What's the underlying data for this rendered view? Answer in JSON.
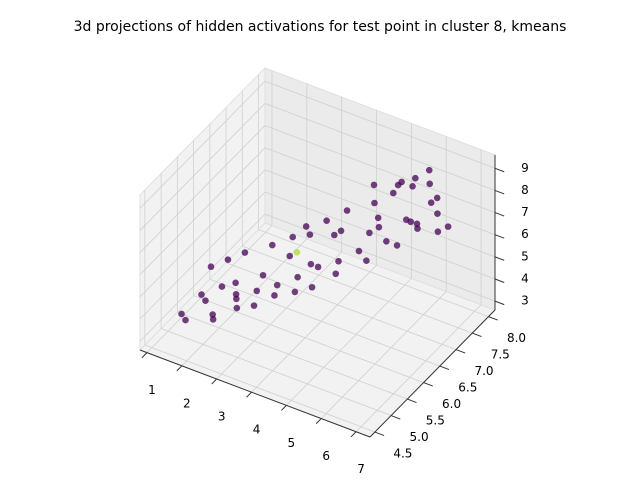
{
  "chart_data": {
    "type": "scatter3d",
    "title": "3d projections of hidden activations for test point in cluster 8, kmeans",
    "series": [
      {
        "color": "#440154",
        "x": [
          1.2,
          1.4,
          1.5,
          1.7,
          1.3,
          1.8,
          2.0,
          1.6,
          2.2,
          2.4,
          1.9,
          2.1,
          2.6,
          2.8,
          2.5,
          3.0,
          3.2,
          2.9,
          3.4,
          3.6,
          3.1,
          3.8,
          4.0,
          3.5,
          4.2,
          4.4,
          3.9,
          4.6,
          4.1,
          4.8,
          5.0,
          4.5,
          5.2,
          4.3,
          5.4,
          5.6,
          4.9,
          5.8,
          6.0,
          5.3,
          6.2,
          5.5,
          6.4,
          5.7,
          6.6,
          5.9,
          6.1,
          4.7,
          5.1,
          6.3,
          3.7,
          3.3,
          2.7,
          2.3,
          5.0,
          6.5,
          4.0,
          3.0,
          5.6,
          6.8
        ],
        "y": [
          5.2,
          5.6,
          5.0,
          5.4,
          6.0,
          5.8,
          5.3,
          6.2,
          5.1,
          5.6,
          6.4,
          5.9,
          5.4,
          5.8,
          6.6,
          5.5,
          6.0,
          6.8,
          5.7,
          6.2,
          7.0,
          5.9,
          6.4,
          7.2,
          6.0,
          6.6,
          7.4,
          6.3,
          7.0,
          6.8,
          7.2,
          7.6,
          6.6,
          7.8,
          7.0,
          7.4,
          7.9,
          6.9,
          7.3,
          8.0,
          7.1,
          7.7,
          7.5,
          8.0,
          7.3,
          7.8,
          7.0,
          7.5,
          6.8,
          7.6,
          6.5,
          6.9,
          6.1,
          5.7,
          7.9,
          7.2,
          6.9,
          6.6,
          7.0,
          7.4
        ],
        "z": [
          3.2,
          3.6,
          3.4,
          3.8,
          4.2,
          3.9,
          3.5,
          4.4,
          3.7,
          4.0,
          4.6,
          4.1,
          4.0,
          4.3,
          5.0,
          4.2,
          4.5,
          5.3,
          4.6,
          4.8,
          5.6,
          4.7,
          5.2,
          5.8,
          5.0,
          5.4,
          6.2,
          5.4,
          6.0,
          5.8,
          6.4,
          6.6,
          5.9,
          7.0,
          6.3,
          6.8,
          7.2,
          6.5,
          7.0,
          7.6,
          7.2,
          7.8,
          7.4,
          8.2,
          7.0,
          8.0,
          7.6,
          6.2,
          6.8,
          7.9,
          5.0,
          5.5,
          4.5,
          4.0,
          7.4,
          8.4,
          5.9,
          4.8,
          8.6,
          7.2
        ]
      },
      {
        "color": "#addc30",
        "x": [
          3.3
        ],
        "y": [
          6.5
        ],
        "z": [
          5.3
        ]
      }
    ],
    "xlim": [
      0.8,
      7.4
    ],
    "ylim": [
      4.35,
      8.2
    ],
    "zlim": [
      2.6,
      9.6
    ],
    "xticks": [
      1,
      2,
      3,
      4,
      5,
      6,
      7
    ],
    "yticks": [
      4.5,
      {
        "value": 5,
        "label": "5.0"
      },
      5.5,
      {
        "value": 6,
        "label": "6.0"
      },
      6.5,
      {
        "value": 7,
        "label": "7.0"
      },
      7.5,
      {
        "value": 8,
        "label": "8.0"
      }
    ],
    "zticks": [
      3,
      4,
      5,
      6,
      7,
      8,
      9
    ],
    "grid": true
  }
}
